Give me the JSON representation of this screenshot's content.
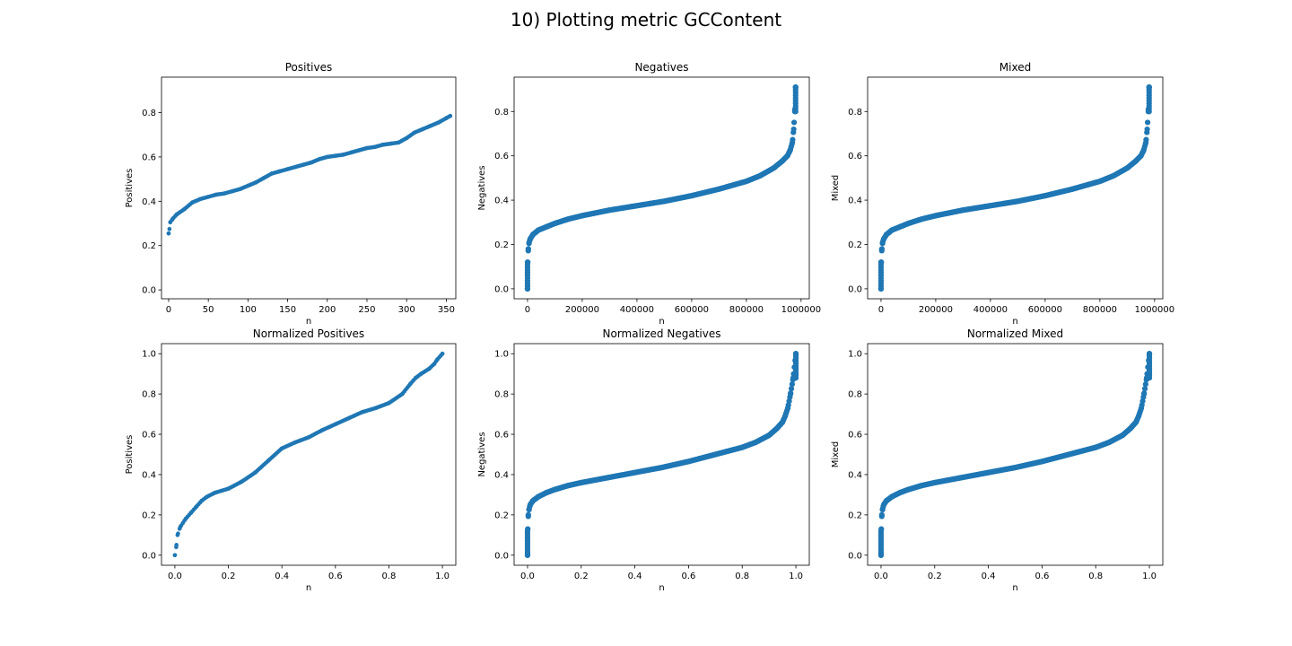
{
  "figure_title": "10) Plotting metric GCContent",
  "marker_color": "#1f77b4",
  "chart_data": [
    {
      "type": "scatter",
      "title": "Positives",
      "xlabel": "n",
      "ylabel": "Positives",
      "xlim": [
        -9,
        362
      ],
      "ylim": [
        -0.04,
        0.96
      ],
      "xticks": [
        0,
        50,
        100,
        150,
        200,
        250,
        300,
        350
      ],
      "xtick_labels": [
        "0",
        "50",
        "100",
        "150",
        "200",
        "250",
        "300",
        "350"
      ],
      "yticks": [
        0.0,
        0.2,
        0.4,
        0.6,
        0.8
      ],
      "ytick_labels": [
        "0.0",
        "0.2",
        "0.4",
        "0.6",
        "0.8"
      ],
      "curve_x": [
        0,
        1,
        2,
        5,
        10,
        20,
        30,
        40,
        50,
        60,
        70,
        80,
        90,
        100,
        110,
        120,
        130,
        140,
        150,
        160,
        170,
        180,
        190,
        200,
        210,
        220,
        230,
        240,
        250,
        260,
        270,
        280,
        290,
        300,
        310,
        320,
        330,
        340,
        350,
        355
      ],
      "curve_y": [
        0.255,
        0.275,
        0.305,
        0.32,
        0.34,
        0.365,
        0.395,
        0.41,
        0.42,
        0.43,
        0.435,
        0.445,
        0.455,
        0.47,
        0.485,
        0.505,
        0.525,
        0.535,
        0.545,
        0.555,
        0.565,
        0.575,
        0.59,
        0.6,
        0.605,
        0.61,
        0.62,
        0.63,
        0.64,
        0.645,
        0.655,
        0.66,
        0.665,
        0.685,
        0.71,
        0.725,
        0.74,
        0.755,
        0.775,
        0.785
      ],
      "n_points": 356
    },
    {
      "type": "scatter",
      "title": "Negatives",
      "xlabel": "n",
      "ylabel": "Negatives",
      "xlim": [
        -49000,
        1030000
      ],
      "ylim": [
        -0.045,
        0.955
      ],
      "xticks": [
        0,
        200000,
        400000,
        600000,
        800000,
        1000000
      ],
      "xtick_labels": [
        "0",
        "200000",
        "400000",
        "600000",
        "800000",
        "1000000"
      ],
      "yticks": [
        0.0,
        0.2,
        0.4,
        0.6,
        0.8
      ],
      "ytick_labels": [
        "0.0",
        "0.2",
        "0.4",
        "0.6",
        "0.8"
      ],
      "curve_x": [
        0,
        1000,
        3000,
        6000,
        10000,
        20000,
        40000,
        70000,
        100000,
        150000,
        200000,
        300000,
        400000,
        500000,
        600000,
        700000,
        800000,
        850000,
        900000,
        930000,
        950000,
        960000,
        968000,
        973000,
        977000,
        980000
      ],
      "curve_y": [
        0.0,
        0.12,
        0.18,
        0.21,
        0.225,
        0.245,
        0.265,
        0.28,
        0.295,
        0.315,
        0.33,
        0.355,
        0.375,
        0.395,
        0.42,
        0.45,
        0.485,
        0.51,
        0.545,
        0.575,
        0.6,
        0.625,
        0.66,
        0.72,
        0.8,
        0.91
      ],
      "n_points": 980000
    },
    {
      "type": "scatter",
      "title": "Mixed",
      "xlabel": "n",
      "ylabel": "Mixed",
      "xlim": [
        -49000,
        1030000
      ],
      "ylim": [
        -0.045,
        0.955
      ],
      "xticks": [
        0,
        200000,
        400000,
        600000,
        800000,
        1000000
      ],
      "xtick_labels": [
        "0",
        "200000",
        "400000",
        "600000",
        "800000",
        "1000000"
      ],
      "yticks": [
        0.0,
        0.2,
        0.4,
        0.6,
        0.8
      ],
      "ytick_labels": [
        "0.0",
        "0.2",
        "0.4",
        "0.6",
        "0.8"
      ],
      "curve_x": [
        0,
        1000,
        3000,
        6000,
        10000,
        20000,
        40000,
        70000,
        100000,
        150000,
        200000,
        300000,
        400000,
        500000,
        600000,
        700000,
        800000,
        850000,
        900000,
        930000,
        950000,
        960000,
        968000,
        973000,
        977000,
        980000
      ],
      "curve_y": [
        0.0,
        0.12,
        0.18,
        0.21,
        0.225,
        0.245,
        0.265,
        0.28,
        0.295,
        0.315,
        0.33,
        0.355,
        0.375,
        0.395,
        0.42,
        0.45,
        0.485,
        0.51,
        0.545,
        0.575,
        0.6,
        0.625,
        0.66,
        0.72,
        0.8,
        0.91
      ],
      "n_points": 980000
    },
    {
      "type": "scatter",
      "title": "Normalized Positives",
      "xlabel": "n",
      "ylabel": "Positives",
      "xlim": [
        -0.05,
        1.05
      ],
      "ylim": [
        -0.05,
        1.05
      ],
      "xticks": [
        0.0,
        0.2,
        0.4,
        0.6,
        0.8,
        1.0
      ],
      "xtick_labels": [
        "0.0",
        "0.2",
        "0.4",
        "0.6",
        "0.8",
        "1.0"
      ],
      "yticks": [
        0.0,
        0.2,
        0.4,
        0.6,
        0.8,
        1.0
      ],
      "ytick_labels": [
        "0.0",
        "0.2",
        "0.4",
        "0.6",
        "0.8",
        "1.0"
      ],
      "curve_x": [
        0.0,
        0.005,
        0.01,
        0.02,
        0.04,
        0.06,
        0.08,
        0.1,
        0.12,
        0.15,
        0.2,
        0.25,
        0.3,
        0.35,
        0.4,
        0.45,
        0.5,
        0.55,
        0.6,
        0.65,
        0.7,
        0.75,
        0.8,
        0.85,
        0.88,
        0.9,
        0.92,
        0.95,
        0.97,
        0.98,
        1.0
      ],
      "curve_y": [
        0.0,
        0.04,
        0.1,
        0.14,
        0.18,
        0.21,
        0.24,
        0.27,
        0.29,
        0.31,
        0.33,
        0.365,
        0.41,
        0.47,
        0.53,
        0.56,
        0.585,
        0.62,
        0.65,
        0.68,
        0.71,
        0.73,
        0.755,
        0.8,
        0.85,
        0.88,
        0.9,
        0.925,
        0.95,
        0.97,
        1.0
      ],
      "n_points": 356
    },
    {
      "type": "scatter",
      "title": "Normalized Negatives",
      "xlabel": "n",
      "ylabel": "Negatives",
      "xlim": [
        -0.05,
        1.05
      ],
      "ylim": [
        -0.05,
        1.05
      ],
      "xticks": [
        0.0,
        0.2,
        0.4,
        0.6,
        0.8,
        1.0
      ],
      "xtick_labels": [
        "0.0",
        "0.2",
        "0.4",
        "0.6",
        "0.8",
        "1.0"
      ],
      "yticks": [
        0.0,
        0.2,
        0.4,
        0.6,
        0.8,
        1.0
      ],
      "ytick_labels": [
        "0.0",
        "0.2",
        "0.4",
        "0.6",
        "0.8",
        "1.0"
      ],
      "curve_x": [
        0.0,
        0.001,
        0.003,
        0.006,
        0.01,
        0.02,
        0.04,
        0.07,
        0.1,
        0.15,
        0.2,
        0.3,
        0.4,
        0.5,
        0.6,
        0.7,
        0.8,
        0.85,
        0.9,
        0.93,
        0.95,
        0.96,
        0.97,
        0.98,
        0.99,
        1.0
      ],
      "curve_y": [
        0.0,
        0.13,
        0.2,
        0.23,
        0.25,
        0.27,
        0.29,
        0.31,
        0.325,
        0.345,
        0.36,
        0.385,
        0.41,
        0.435,
        0.465,
        0.5,
        0.535,
        0.56,
        0.595,
        0.63,
        0.66,
        0.69,
        0.73,
        0.8,
        0.88,
        1.0
      ],
      "n_points": 980000
    },
    {
      "type": "scatter",
      "title": "Normalized Mixed",
      "xlabel": "n",
      "ylabel": "Mixed",
      "xlim": [
        -0.05,
        1.05
      ],
      "ylim": [
        -0.05,
        1.05
      ],
      "xticks": [
        0.0,
        0.2,
        0.4,
        0.6,
        0.8,
        1.0
      ],
      "xtick_labels": [
        "0.0",
        "0.2",
        "0.4",
        "0.6",
        "0.8",
        "1.0"
      ],
      "yticks": [
        0.0,
        0.2,
        0.4,
        0.6,
        0.8,
        1.0
      ],
      "ytick_labels": [
        "0.0",
        "0.2",
        "0.4",
        "0.6",
        "0.8",
        "1.0"
      ],
      "curve_x": [
        0.0,
        0.001,
        0.003,
        0.006,
        0.01,
        0.02,
        0.04,
        0.07,
        0.1,
        0.15,
        0.2,
        0.3,
        0.4,
        0.5,
        0.6,
        0.7,
        0.8,
        0.85,
        0.9,
        0.93,
        0.95,
        0.96,
        0.97,
        0.98,
        0.99,
        1.0
      ],
      "curve_y": [
        0.0,
        0.13,
        0.2,
        0.23,
        0.25,
        0.27,
        0.29,
        0.31,
        0.325,
        0.345,
        0.36,
        0.385,
        0.41,
        0.435,
        0.465,
        0.5,
        0.535,
        0.56,
        0.595,
        0.63,
        0.66,
        0.69,
        0.73,
        0.8,
        0.88,
        1.0
      ],
      "n_points": 980000
    }
  ]
}
